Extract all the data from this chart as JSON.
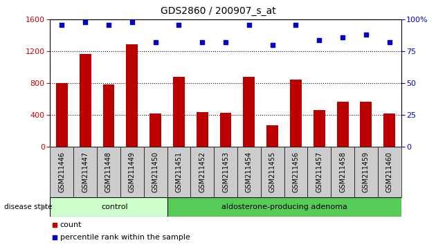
{
  "title": "GDS2860 / 200907_s_at",
  "samples": [
    "GSM211446",
    "GSM211447",
    "GSM211448",
    "GSM211449",
    "GSM211450",
    "GSM211451",
    "GSM211452",
    "GSM211453",
    "GSM211454",
    "GSM211455",
    "GSM211456",
    "GSM211457",
    "GSM211458",
    "GSM211459",
    "GSM211460"
  ],
  "counts": [
    800,
    1170,
    790,
    1290,
    420,
    880,
    440,
    430,
    880,
    270,
    850,
    460,
    570,
    570,
    420
  ],
  "percentiles": [
    96,
    98,
    96,
    98,
    82,
    96,
    82,
    82,
    96,
    80,
    96,
    84,
    86,
    88,
    82
  ],
  "n_control": 5,
  "bar_color": "#bb0000",
  "dot_color": "#0000cc",
  "ylim_left": [
    0,
    1600
  ],
  "ylim_right": [
    0,
    100
  ],
  "yticks_left": [
    0,
    400,
    800,
    1200,
    1600
  ],
  "yticks_right": [
    0,
    25,
    50,
    75,
    100
  ],
  "control_color": "#ccffcc",
  "adenoma_color": "#55cc55",
  "label_color_left": "#cc0000",
  "label_color_right": "#0000cc",
  "tick_bg": "#cccccc",
  "title_fontsize": 10,
  "label_fontsize": 7,
  "group_fontsize": 8,
  "legend_fontsize": 8
}
